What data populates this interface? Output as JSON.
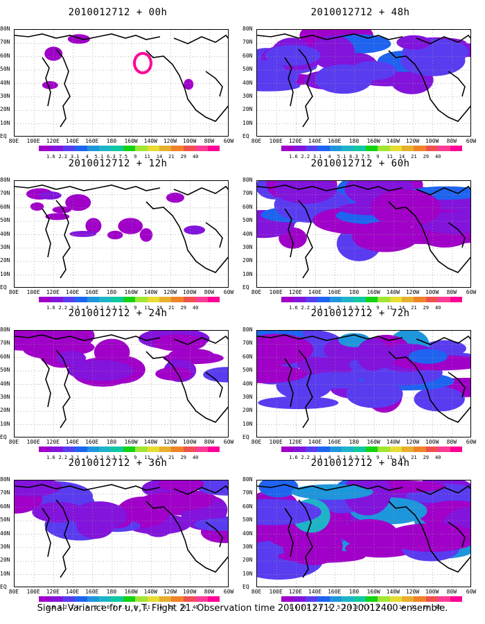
{
  "panels": [
    {
      "title": "2010012712 + 00h",
      "level": 0
    },
    {
      "title": "2010012712 + 48h",
      "level": 4
    },
    {
      "title": "2010012712 + 12h",
      "level": 1
    },
    {
      "title": "2010012712 + 60h",
      "level": 5
    },
    {
      "title": "2010012712 + 24h",
      "level": 2
    },
    {
      "title": "2010012712 + 72h",
      "level": 6
    },
    {
      "title": "2010012712 + 36h",
      "level": 3
    },
    {
      "title": "2010012712 + 84h",
      "level": 7
    }
  ],
  "lat_labels": [
    "80N",
    "70N",
    "60N",
    "50N",
    "40N",
    "30N",
    "20N",
    "10N",
    "EQ"
  ],
  "lon_labels": [
    "80E",
    "100E",
    "120E",
    "140E",
    "160E",
    "180",
    "160W",
    "140W",
    "120W",
    "100W",
    "80W",
    "60W"
  ],
  "colorbar": {
    "labels": [
      "1.6",
      "2.2",
      "3.1",
      "4",
      "5.1",
      "6.3",
      "7.5",
      "9",
      "11",
      "14",
      "21",
      "29",
      "40"
    ],
    "colors": [
      "#a000c8",
      "#8214dc",
      "#5a3cf0",
      "#1e64f0",
      "#1e96dc",
      "#1eb4c8",
      "#0fc8a0",
      "#14d214",
      "#a0e632",
      "#e6dc32",
      "#e6af2d",
      "#f08228",
      "#f05050",
      "#fa3c96",
      "#ff0096"
    ]
  },
  "caption": "Signal Variance for u,v,T. Flight 21. Observation time 2010012712. 2010012400 ensemble."
}
